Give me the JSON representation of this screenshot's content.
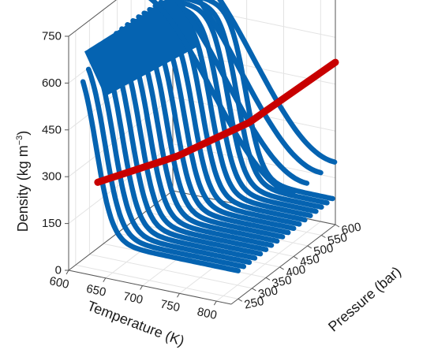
{
  "chart_data": {
    "type": "scatter",
    "title": "",
    "zlabel": "Density (kg m",
    "zlabel_sup": "−3",
    "zlabel_tail": ")",
    "xlabel": "Temperature (K)",
    "ylabel": "Pressure (bar)",
    "xlim": [
      600,
      820
    ],
    "ylim": [
      225,
      600
    ],
    "zlim": [
      0,
      750
    ],
    "xticks": [
      "600",
      "650",
      "700",
      "750",
      "800"
    ],
    "yticks": [
      "250",
      "300",
      "350",
      "400",
      "450",
      "500",
      "550",
      "600"
    ],
    "zticks": [
      "0",
      "150",
      "300",
      "450",
      "600",
      "750"
    ],
    "grid": true,
    "colors": {
      "isotherms": "#0563b1",
      "critical_line": "#c80000"
    },
    "series": [
      {
        "kind": "isobar-curves (blue)",
        "temperature_range": [
          610,
          820
        ],
        "pressures": [
          250,
          270,
          290,
          310,
          330,
          350,
          370,
          390,
          410,
          430,
          450,
          470,
          490,
          510,
          530,
          550,
          570,
          590
        ],
        "density_at_low_T": 690,
        "density_at_high_T": 90
      },
      {
        "kind": "high-pressure isobars (blue)",
        "pressures": [
          430,
          480,
          530,
          580
        ],
        "density_start": 750,
        "density_end": 200
      },
      {
        "kind": "critical line (red)",
        "points": [
          [
            630,
            250,
            280
          ],
          [
            700,
            350,
            330
          ],
          [
            760,
            450,
            400
          ],
          [
            820,
            600,
            520
          ]
        ]
      }
    ]
  }
}
